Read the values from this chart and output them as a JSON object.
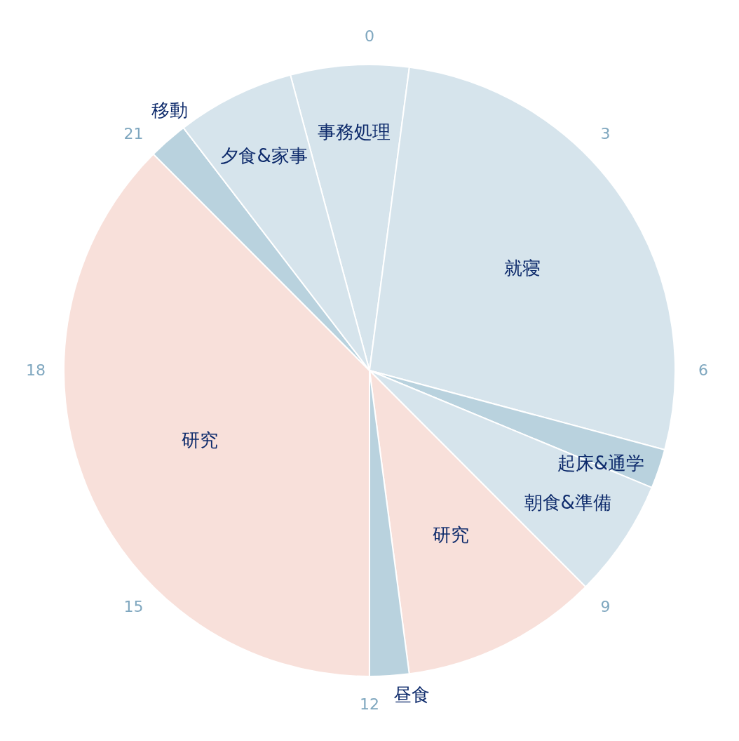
{
  "chart_data": {
    "type": "pie",
    "categories": [
      "事務処理",
      "就寝",
      "起床&通学",
      "朝食&準備",
      "研究",
      "昼食",
      "研究",
      "移動",
      "夕食&家事"
    ],
    "values": [
      6.25,
      27.09,
      2.08,
      6.25,
      10.42,
      2.08,
      37.5,
      2.08,
      6.25
    ],
    "colors": [
      "#d6e4ec",
      "#d6e4ec",
      "#b9d2de",
      "#d6e4ec",
      "#f8e0da",
      "#b9d2de",
      "#f8e0da",
      "#b9d2de",
      "#d6e4ec"
    ],
    "annotations": [
      "0",
      "3",
      "6",
      "9",
      "12",
      "15",
      "18",
      "21"
    ]
  }
}
